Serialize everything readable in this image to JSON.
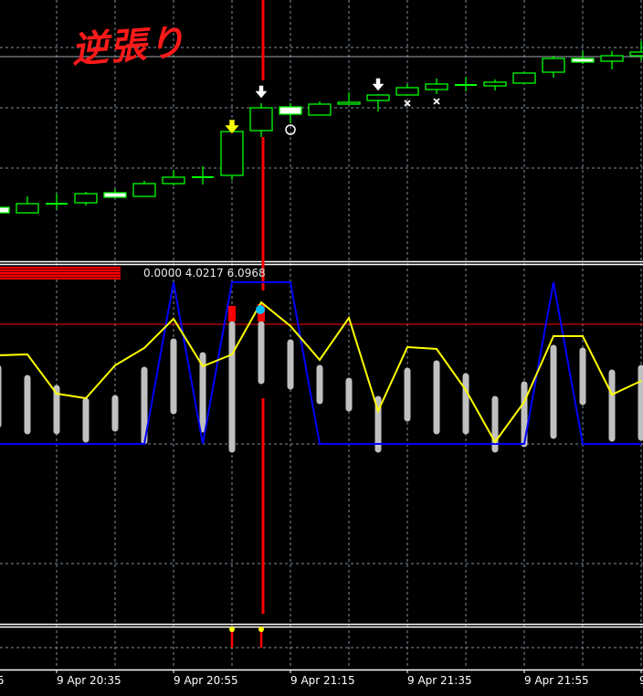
{
  "annotation": {
    "text": "逆張り",
    "color": "#ff1a1a"
  },
  "indicator": {
    "values_text": "0.0000 4.0217 6.0968"
  },
  "time_axis": {
    "labels": [
      "5",
      "9 Apr 20:35",
      "9 Apr 20:55",
      "9 Apr 21:15",
      "9 Apr 21:35",
      "9 Apr 21:55",
      "9"
    ]
  },
  "colors": {
    "background": "#000000",
    "bull": "#00ff00",
    "bear_fill": "#ffffff",
    "histogram": "#c0c0c0",
    "signal_line": "#ffff00",
    "state_line": "#0000ff",
    "level_line": "#ff0000",
    "marker_dot": "#00bfff",
    "grid": "#8090a0"
  },
  "candles": [
    [
      6.3,
      6.5,
      5.5,
      5.7
    ],
    [
      5.7,
      7.5,
      5.7,
      6.7
    ],
    [
      6.7,
      7.8,
      6.1,
      6.7
    ],
    [
      6.8,
      8.0,
      6.5,
      7.8
    ],
    [
      7.9,
      8.3,
      7.4,
      7.4
    ],
    [
      7.5,
      9.2,
      7.5,
      8.9
    ],
    [
      8.9,
      10.4,
      8.7,
      9.6
    ],
    [
      9.6,
      10.8,
      8.8,
      9.6
    ],
    [
      9.8,
      14.6,
      9.3,
      14.6
    ],
    [
      14.7,
      17.7,
      14.0,
      17.2
    ],
    [
      17.3,
      17.7,
      15.5,
      16.5
    ],
    [
      16.4,
      17.9,
      16.4,
      17.6
    ],
    [
      17.6,
      18.9,
      17.6,
      17.8
    ],
    [
      18.0,
      18.7,
      16.8,
      18.6
    ],
    [
      18.6,
      19.8,
      18.6,
      19.4
    ],
    [
      19.2,
      20.4,
      18.7,
      19.8
    ],
    [
      19.7,
      20.6,
      19.0,
      19.7
    ],
    [
      19.6,
      20.3,
      19.1,
      20.0
    ],
    [
      19.9,
      21.1,
      19.9,
      21.0
    ],
    [
      21.1,
      22.9,
      20.5,
      22.6
    ],
    [
      22.6,
      23.4,
      22.0,
      22.2
    ],
    [
      22.3,
      23.4,
      21.4,
      22.9
    ],
    [
      22.9,
      24.5,
      22.4,
      23.3
    ]
  ],
  "markers": [
    {
      "bar": 8,
      "type": "arrow-down",
      "color": "#ffff00",
      "value": 15.2
    },
    {
      "bar": 9,
      "type": "arrow-down",
      "color": "#ffffff",
      "value": 19.0
    },
    {
      "bar": 13,
      "type": "arrow-down",
      "color": "#ffffff",
      "value": 19.8
    },
    {
      "bar": 10,
      "type": "circle",
      "color": "#ffffff",
      "value": 14.8
    },
    {
      "bar": 14,
      "type": "cross",
      "color": "#ffffff",
      "value": 17.7
    },
    {
      "bar": 15,
      "type": "cross",
      "color": "#ffffff",
      "value": 17.9
    }
  ],
  "horizontal_line_value": 22.8,
  "cursor_bar": 9,
  "histogram": [
    [
      8.6,
      1.8
    ],
    [
      7.5,
      1.1
    ],
    [
      6.4,
      1.1
    ],
    [
      5.0,
      0.2
    ],
    [
      5.3,
      1.4
    ],
    [
      8.4,
      0
    ],
    [
      11.5,
      3.3
    ],
    [
      10.0,
      1.3
    ],
    [
      13.4,
      -0.9
    ],
    [
      13.4,
      6.6
    ],
    [
      11.4,
      6.0
    ],
    [
      8.6,
      4.4
    ],
    [
      7.2,
      3.6
    ],
    [
      5.2,
      -0.9
    ],
    [
      8.3,
      2.5
    ],
    [
      9.1,
      1.1
    ],
    [
      7.7,
      1.1
    ],
    [
      5.2,
      -0.9
    ],
    [
      6.8,
      -0.3
    ],
    [
      10.8,
      0.6
    ],
    [
      10.5,
      4.3
    ],
    [
      8.1,
      0.3
    ],
    [
      8.6,
      0.4
    ]
  ],
  "histogram_red_caps": [
    {
      "bar": 8,
      "top": 15.1
    },
    {
      "bar": 9,
      "top": 15.3
    }
  ],
  "signal_line": [
    9.7,
    9.8,
    5.5,
    5.0,
    8.6,
    10.5,
    13.7,
    8.5,
    9.8,
    15.5,
    12.9,
    9.2,
    13.8,
    3.6,
    10.6,
    10.4,
    5.9,
    0.2,
    4.6,
    11.8,
    11.8,
    5.4,
    6.9
  ],
  "state_line": [
    0,
    0,
    0,
    0,
    0,
    0,
    17.7,
    0,
    17.7,
    17.7,
    17.7,
    0,
    0,
    0,
    0,
    0,
    0,
    0,
    0,
    17.7,
    0,
    0,
    0
  ],
  "level_value": 13.1,
  "cyan_dot": {
    "bar": 9,
    "value": 14.7
  },
  "signal_bars": [
    8,
    9
  ]
}
